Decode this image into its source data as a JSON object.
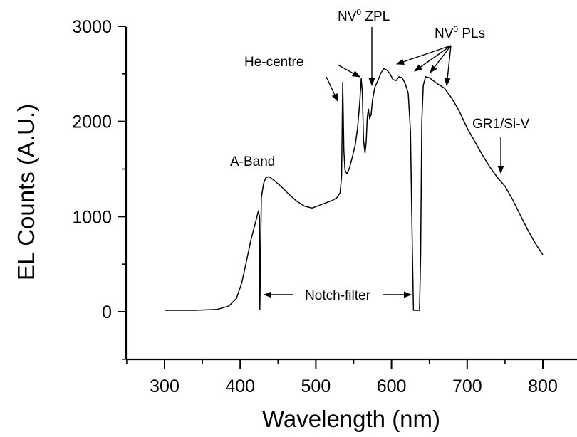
{
  "chart_data": {
    "type": "line",
    "title": "",
    "xlabel": "Wavelength (nm)",
    "ylabel": "EL Counts (A.U.)",
    "xlim": [
      250,
      850
    ],
    "ylim": [
      -500,
      3000
    ],
    "xticks": [
      300,
      400,
      500,
      600,
      700,
      800
    ],
    "yticks": [
      0,
      1000,
      2000,
      3000
    ],
    "xtick_labels": [
      "300",
      "400",
      "500",
      "600",
      "700",
      "800"
    ],
    "ytick_labels": [
      "0",
      "1000",
      "2000",
      "3000"
    ],
    "grid": false,
    "legend": "none",
    "series": [
      {
        "x": [
          300,
          340,
          370,
          385,
          395,
          402,
          408,
          414,
          420,
          424,
          425.5,
          426,
          428,
          431,
          434,
          438,
          445,
          455,
          465,
          475,
          485,
          495,
          505,
          515,
          522,
          528,
          532,
          534,
          535.5,
          537,
          538.5,
          541,
          544,
          548,
          552,
          555,
          558,
          560,
          561.5,
          563,
          565,
          566.5,
          568,
          569.5,
          571,
          573,
          575,
          578,
          582,
          586,
          590,
          594,
          598,
          602,
          606,
          610,
          614,
          618,
          622,
          625,
          627,
          629,
          631,
          634,
          637,
          638.5,
          640,
          642,
          645,
          650,
          655,
          660,
          670,
          680,
          690,
          700,
          710,
          720,
          730,
          740,
          750,
          760,
          770,
          780,
          790,
          800
        ],
        "y": [
          15,
          15,
          25,
          60,
          140,
          300,
          520,
          750,
          930,
          1060,
          1000,
          25,
          1200,
          1350,
          1410,
          1420,
          1380,
          1310,
          1230,
          1160,
          1110,
          1090,
          1120,
          1150,
          1170,
          1200,
          1250,
          1420,
          2410,
          1700,
          1490,
          1450,
          1500,
          1620,
          1750,
          1920,
          2200,
          2450,
          2300,
          1800,
          1670,
          1780,
          2050,
          2130,
          2030,
          2070,
          2230,
          2360,
          2430,
          2510,
          2555,
          2540,
          2500,
          2440,
          2430,
          2470,
          2460,
          2400,
          2300,
          1900,
          900,
          15,
          15,
          15,
          15,
          600,
          2000,
          2380,
          2470,
          2460,
          2430,
          2400,
          2350,
          2240,
          2100,
          1930,
          1790,
          1650,
          1520,
          1410,
          1320,
          1180,
          1020,
          860,
          720,
          600
        ]
      }
    ],
    "annotations": [
      {
        "label": "A-Band"
      },
      {
        "label": "He-centre"
      },
      {
        "label_main": "NV",
        "label_sup": "0",
        "label_rest": " ZPL"
      },
      {
        "label_main": "NV",
        "label_sup": "0",
        "label_rest": " PLs"
      },
      {
        "label": "GR1/Si-V"
      },
      {
        "label": "Notch-filter"
      }
    ]
  }
}
